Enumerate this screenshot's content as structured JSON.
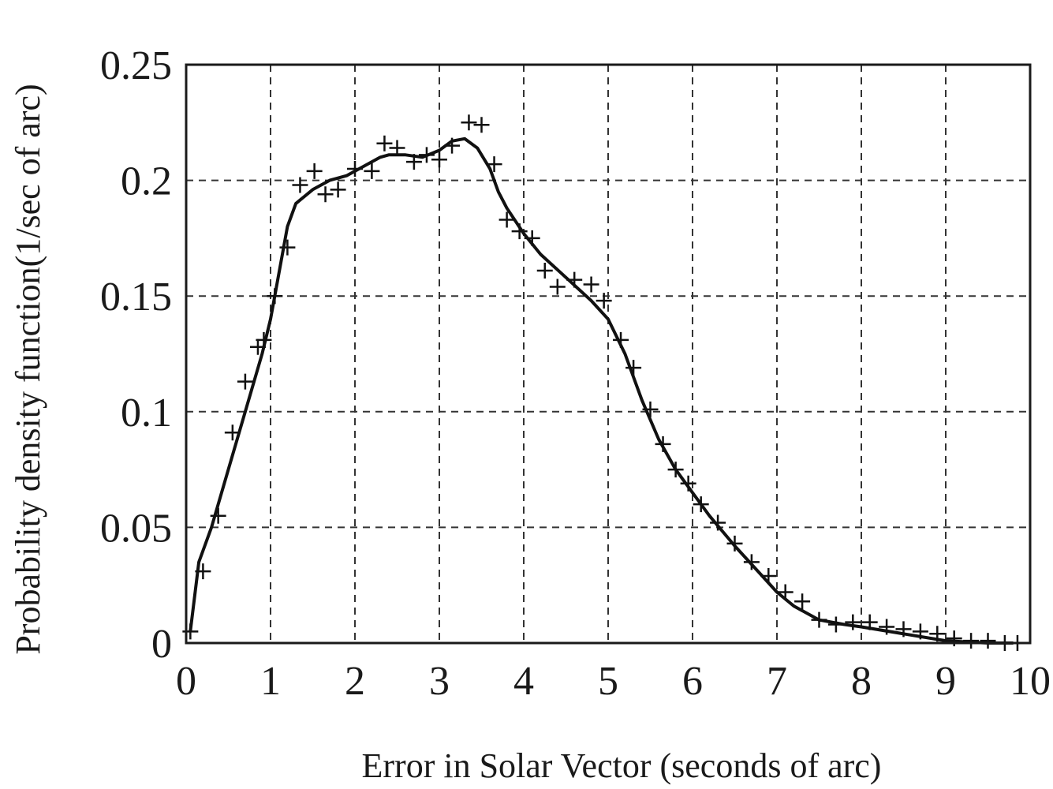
{
  "chart_data": {
    "type": "line",
    "title": "",
    "xlabel": "Error in Solar Vector (seconds of arc)",
    "ylabel": "Probability density function(1/sec of arc)",
    "xlim": [
      0,
      10
    ],
    "ylim": [
      0,
      0.25
    ],
    "xticks": [
      "0",
      "1",
      "2",
      "3",
      "4",
      "5",
      "6",
      "7",
      "8",
      "9",
      "10"
    ],
    "yticks": [
      "0",
      "0.05",
      "0.1",
      "0.15",
      "0.2",
      "0.25"
    ],
    "grid": true,
    "series": [
      {
        "style": "solid-line",
        "x": [
          0.05,
          0.15,
          0.3,
          0.5,
          0.7,
          0.9,
          1.0,
          1.1,
          1.2,
          1.3,
          1.5,
          1.7,
          1.9,
          2.1,
          2.3,
          2.4,
          2.6,
          2.8,
          3.0,
          3.15,
          3.3,
          3.45,
          3.6,
          3.7,
          3.8,
          4.0,
          4.2,
          4.5,
          4.8,
          5.0,
          5.2,
          5.4,
          5.6,
          5.8,
          6.0,
          6.2,
          6.5,
          6.8,
          7.0,
          7.2,
          7.5,
          7.8,
          8.0,
          8.5,
          9.0,
          9.5,
          9.8
        ],
        "y": [
          0.005,
          0.035,
          0.05,
          0.075,
          0.1,
          0.125,
          0.14,
          0.16,
          0.18,
          0.19,
          0.196,
          0.2,
          0.202,
          0.206,
          0.21,
          0.211,
          0.211,
          0.21,
          0.213,
          0.217,
          0.218,
          0.214,
          0.205,
          0.195,
          0.188,
          0.177,
          0.168,
          0.158,
          0.148,
          0.14,
          0.125,
          0.105,
          0.088,
          0.075,
          0.065,
          0.055,
          0.042,
          0.03,
          0.022,
          0.016,
          0.01,
          0.008,
          0.007,
          0.004,
          0.001,
          0.0,
          0.0
        ]
      },
      {
        "style": "plus-markers",
        "x": [
          0.05,
          0.2,
          0.38,
          0.55,
          0.7,
          0.85,
          0.92,
          1.05,
          1.2,
          1.35,
          1.52,
          1.65,
          1.8,
          2.0,
          2.2,
          2.35,
          2.5,
          2.7,
          2.85,
          3.0,
          3.15,
          3.35,
          3.5,
          3.65,
          3.8,
          3.95,
          4.1,
          4.25,
          4.4,
          4.6,
          4.8,
          4.95,
          5.15,
          5.3,
          5.5,
          5.65,
          5.8,
          5.95,
          6.1,
          6.3,
          6.5,
          6.7,
          6.9,
          7.1,
          7.3,
          7.5,
          7.7,
          7.9,
          8.1,
          8.3,
          8.5,
          8.7,
          8.9,
          9.1,
          9.3,
          9.5,
          9.7,
          9.85
        ],
        "y": [
          0.005,
          0.031,
          0.055,
          0.091,
          0.113,
          0.128,
          0.131,
          0.15,
          0.171,
          0.198,
          0.204,
          0.194,
          0.196,
          0.205,
          0.204,
          0.216,
          0.214,
          0.208,
          0.211,
          0.209,
          0.215,
          0.225,
          0.224,
          0.207,
          0.183,
          0.178,
          0.175,
          0.161,
          0.154,
          0.157,
          0.155,
          0.148,
          0.131,
          0.119,
          0.101,
          0.086,
          0.075,
          0.069,
          0.06,
          0.052,
          0.043,
          0.035,
          0.029,
          0.022,
          0.018,
          0.01,
          0.008,
          0.009,
          0.009,
          0.007,
          0.006,
          0.005,
          0.004,
          0.002,
          0.001,
          0.001,
          0.0,
          0.0
        ]
      }
    ]
  }
}
